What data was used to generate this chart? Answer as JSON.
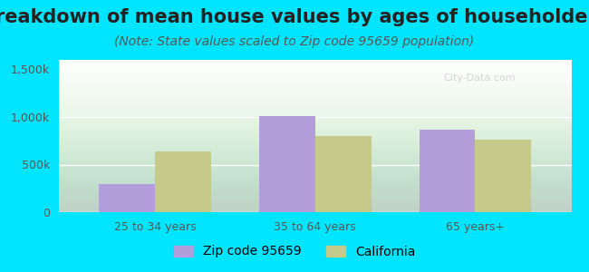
{
  "title": "Breakdown of mean house values by ages of householders",
  "subtitle": "(Note: State values scaled to Zip code 95659 population)",
  "categories": [
    "25 to 34 years",
    "35 to 64 years",
    "65 years+"
  ],
  "zip_values": [
    300000,
    1010000,
    870000
  ],
  "ca_values": [
    640000,
    800000,
    760000
  ],
  "zip_color": "#b39ddb",
  "ca_color": "#c5c98a",
  "background_outer": "#00e5ff",
  "ylim": [
    0,
    1600000
  ],
  "yticks": [
    0,
    500000,
    1000000,
    1500000
  ],
  "ytick_labels": [
    "0",
    "500k",
    "1,000k",
    "1,500k"
  ],
  "legend_labels": [
    "Zip code 95659",
    "California"
  ],
  "bar_width": 0.35,
  "title_fontsize": 15,
  "subtitle_fontsize": 10,
  "tick_fontsize": 9,
  "legend_fontsize": 10
}
